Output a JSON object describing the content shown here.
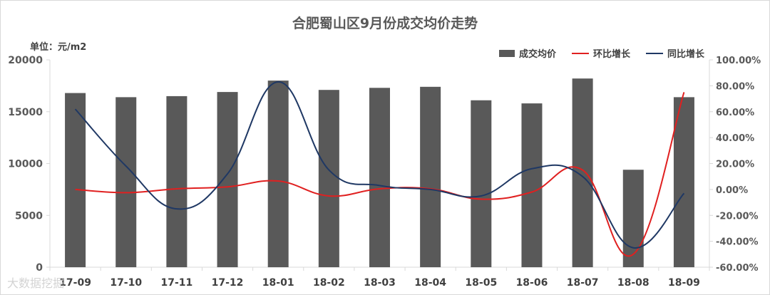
{
  "title": "合肥蜀山区9月份成交均价走势",
  "unit_label": "单位：元/m2",
  "watermark": "大数据挖掘",
  "colors": {
    "bar": "#595959",
    "mom": "#e02020",
    "yoy": "#1f3864",
    "axis": "#d9d9d9",
    "text": "#595959"
  },
  "chart_data": {
    "type": "bar",
    "categories": [
      "17-09",
      "17-10",
      "17-11",
      "17-12",
      "18-01",
      "18-02",
      "18-03",
      "18-04",
      "18-05",
      "18-06",
      "18-07",
      "18-08",
      "18-09"
    ],
    "ylim": [
      0,
      20000
    ],
    "y_ticks": [
      "0",
      "5000",
      "10000",
      "15000",
      "20000"
    ],
    "y2lim": [
      -60,
      100
    ],
    "y2_ticks": [
      "-60.00%",
      "-40.00%",
      "-20.00%",
      "0.00%",
      "20.00%",
      "40.00%",
      "60.00%",
      "80.00%",
      "100.00%"
    ],
    "legend_position": "top-right",
    "series": [
      {
        "name": "成交均价",
        "type": "bar",
        "axis": "left",
        "values": [
          16800,
          16400,
          16500,
          16900,
          18000,
          17100,
          17300,
          17400,
          16100,
          15800,
          18200,
          9400,
          16400
        ]
      },
      {
        "name": "环比增长",
        "type": "line",
        "axis": "right",
        "values": [
          0,
          -2.5,
          0.5,
          2,
          6.5,
          -5,
          0.5,
          0.5,
          -7.5,
          -2,
          15,
          -50,
          75
        ]
      },
      {
        "name": "同比增长",
        "type": "line",
        "axis": "right",
        "values": [
          62,
          18,
          -15,
          12,
          83,
          15,
          3,
          0,
          -5,
          16,
          10,
          -45,
          -3
        ]
      }
    ]
  }
}
